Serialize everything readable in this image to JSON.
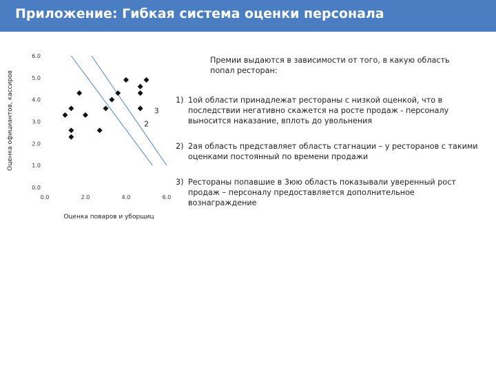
{
  "title": "Приложение: Гибкая система оценки персонала",
  "chart_data": {
    "type": "scatter",
    "xlabel": "Оценка поваров и уборщиц",
    "ylabel": "Оценка официантов, кассиров",
    "xlim": [
      0,
      6
    ],
    "ylim": [
      0,
      6
    ],
    "x_ticks": [
      "0.0",
      "2.0",
      "4.0",
      "6.0"
    ],
    "y_ticks": [
      "0.0",
      "1.0",
      "2.0",
      "3.0",
      "4.0",
      "5.0",
      "6.0"
    ],
    "points": [
      {
        "x": 1.0,
        "y": 3.3
      },
      {
        "x": 1.3,
        "y": 3.6
      },
      {
        "x": 1.3,
        "y": 2.6
      },
      {
        "x": 1.3,
        "y": 2.3
      },
      {
        "x": 1.7,
        "y": 4.3
      },
      {
        "x": 2.0,
        "y": 3.3
      },
      {
        "x": 2.7,
        "y": 2.6
      },
      {
        "x": 3.0,
        "y": 3.6
      },
      {
        "x": 3.3,
        "y": 4.0
      },
      {
        "x": 3.6,
        "y": 4.3
      },
      {
        "x": 4.0,
        "y": 4.9
      },
      {
        "x": 4.7,
        "y": 4.6
      },
      {
        "x": 4.7,
        "y": 4.3
      },
      {
        "x": 4.7,
        "y": 3.6
      },
      {
        "x": 5.0,
        "y": 4.9
      }
    ],
    "boundaries": [
      {
        "from": [
          1.3,
          6.0
        ],
        "to": [
          5.3,
          1.0
        ]
      },
      {
        "from": [
          2.3,
          6.0
        ],
        "to": [
          6.0,
          1.0
        ]
      }
    ],
    "region_labels": [
      {
        "text": "3",
        "x": 5.5,
        "y": 3.5
      },
      {
        "text": "2",
        "x": 5.0,
        "y": 2.9
      }
    ]
  },
  "panel": {
    "intro": "Премии выдаются в зависимости от того, в какую область попал ресторан:",
    "items": [
      {
        "num": "1)",
        "text": "1ой области принадлежат рестораны с низкой оценкой, что в последствии негативно скажется на росте продаж - персоналу выносится наказание, вплоть до увольнения"
      },
      {
        "num": "2)",
        "text": "2ая область представляет область стагнации – у ресторанов с такими оценками постоянный по времени продажи"
      },
      {
        "num": "3)",
        "text": "Рестораны попавшие в 3юю область показывали уверенный рост продаж – персоналу предоставляется дополнительное вознаграждение"
      }
    ]
  }
}
